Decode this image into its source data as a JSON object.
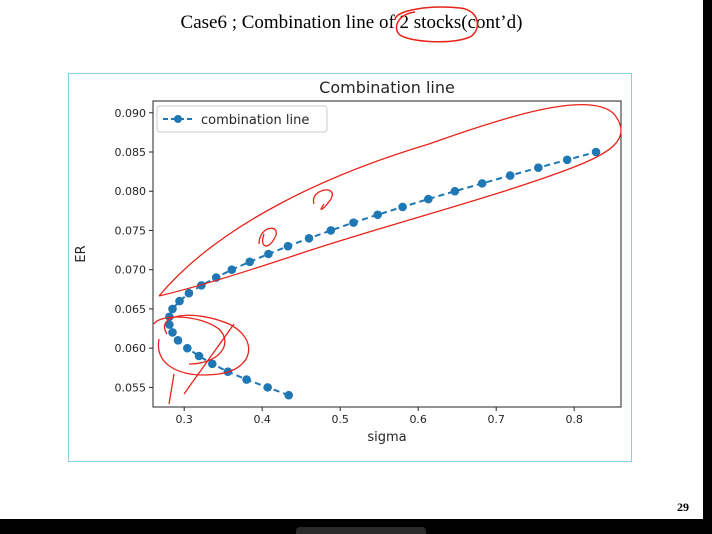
{
  "slide": {
    "title": "Case6 ; Combination line of 2 stocks(cont’d)",
    "page_number": "29"
  },
  "colors": {
    "series": "#1f77b4",
    "annotation": "#e8231b",
    "frame": "#87ceeb"
  },
  "chart_data": {
    "type": "line",
    "title": "Combination line",
    "xlabel": "sigma",
    "ylabel": "ER",
    "xlim": [
      0.26,
      0.86
    ],
    "ylim": [
      0.0525,
      0.0915
    ],
    "xticks": [
      0.3,
      0.4,
      0.5,
      0.6,
      0.7,
      0.8
    ],
    "xtick_labels": [
      "0.3",
      "0.4",
      "0.5",
      "0.6",
      "0.7",
      "0.8"
    ],
    "yticks": [
      0.055,
      0.06,
      0.065,
      0.07,
      0.075,
      0.08,
      0.085,
      0.09
    ],
    "ytick_labels": [
      "0.055",
      "0.060",
      "0.065",
      "0.070",
      "0.075",
      "0.080",
      "0.085",
      "0.090"
    ],
    "legend_position": "top-left",
    "grid": false,
    "line_style": "dashed",
    "marker": "circle",
    "series": [
      {
        "name": "combination line",
        "x": [
          0.434,
          0.407,
          0.38,
          0.356,
          0.336,
          0.319,
          0.304,
          0.292,
          0.285,
          0.281,
          0.281,
          0.285,
          0.294,
          0.306,
          0.322,
          0.341,
          0.361,
          0.384,
          0.408,
          0.433,
          0.46,
          0.488,
          0.517,
          0.548,
          0.58,
          0.613,
          0.647,
          0.682,
          0.718,
          0.754,
          0.791,
          0.828
        ],
        "y": [
          0.054,
          0.055,
          0.056,
          0.057,
          0.058,
          0.059,
          0.06,
          0.061,
          0.062,
          0.063,
          0.064,
          0.065,
          0.066,
          0.067,
          0.068,
          0.069,
          0.07,
          0.071,
          0.072,
          0.073,
          0.074,
          0.075,
          0.076,
          0.077,
          0.078,
          0.079,
          0.08,
          0.081,
          0.082,
          0.083,
          0.084,
          0.085
        ]
      }
    ]
  }
}
